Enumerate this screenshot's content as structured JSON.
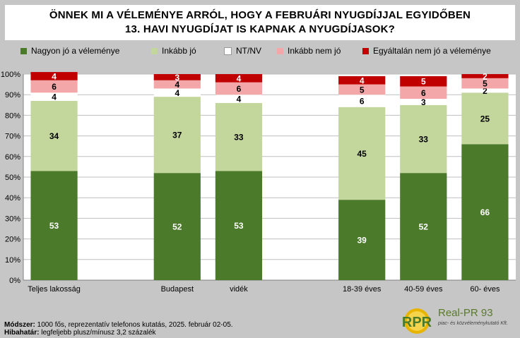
{
  "title": {
    "line1": "ÖNNEK MI A VÉLEMÉNYE ARRÓL, HOGY A FEBRUÁRI NYUGDÍJJAL EGYIDŐBEN",
    "line2": "13. HAVI NYUGDÍJAT IS KAPNAK A NYUGDÍJASOK?"
  },
  "legend": [
    {
      "label": "Nagyon jó a véleménye",
      "color": "#4b7a2b"
    },
    {
      "label": "Inkább jó",
      "color": "#c3d69b"
    },
    {
      "label": "NT/NV",
      "color": "#ffffff"
    },
    {
      "label": "Inkább nem jó",
      "color": "#f4a7a8"
    },
    {
      "label": "Egyáltalán nem jó a véleménye",
      "color": "#c00000"
    }
  ],
  "chart_data": {
    "type": "bar",
    "stacked": true,
    "categories": [
      "Teljes lakosság",
      "",
      "Budapest",
      "vidék",
      "",
      "18-39 éves",
      "40-59 éves",
      "60-  éves"
    ],
    "series": [
      {
        "name": "Nagyon jó a véleménye",
        "color": "#4b7a2b",
        "values": [
          53,
          null,
          52,
          53,
          null,
          39,
          52,
          66
        ]
      },
      {
        "name": "Inkább jó",
        "color": "#c3d69b",
        "values": [
          34,
          null,
          37,
          33,
          null,
          45,
          33,
          25
        ]
      },
      {
        "name": "NT/NV",
        "color": "#ffffff",
        "values": [
          4,
          null,
          4,
          4,
          null,
          6,
          3,
          2
        ]
      },
      {
        "name": "Inkább nem jó",
        "color": "#f4a7a8",
        "values": [
          6,
          null,
          4,
          6,
          null,
          5,
          6,
          5
        ]
      },
      {
        "name": "Egyáltalán nem jó a véleménye",
        "color": "#c00000",
        "values": [
          4,
          null,
          3,
          4,
          null,
          4,
          5,
          2
        ]
      }
    ],
    "yticks": [
      "0%",
      "10%",
      "20%",
      "30%",
      "40%",
      "50%",
      "60%",
      "70%",
      "80%",
      "90%",
      "100%"
    ],
    "ylim": [
      0,
      100
    ],
    "grid": true,
    "legend_position": "top"
  },
  "footer": {
    "method_label": "Módszer:",
    "method_text": " 1000 fős, reprezentatív telefonos kutatás, 2025. február 02-05.",
    "error_label": "Hibahatár:",
    "error_text": " legfeljebb plusz/mínusz 3,2 százalék"
  },
  "logo": {
    "mark": "RPR",
    "name": "Real-PR 93",
    "sub": "piac- és közvéleménykutató Kft."
  }
}
